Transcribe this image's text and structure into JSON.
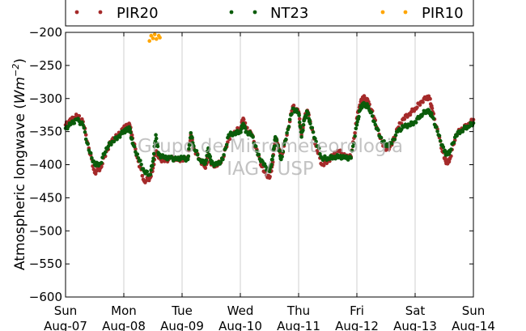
{
  "chart_data": {
    "type": "scatter",
    "ylabel": "Atmospheric longwave (Wm⁻²)",
    "ylabel_parts": {
      "main": "Atmospheric longwave (",
      "unit": "Wm",
      "exponent": "−2",
      "close": ")"
    },
    "ylim": [
      -600,
      -200
    ],
    "yticks": [
      -200,
      -250,
      -300,
      -350,
      -400,
      -450,
      -500,
      -550,
      -600
    ],
    "xlim": [
      0,
      7
    ],
    "x_unit": "days since Sun Aug-07",
    "xticks": [
      {
        "day": "Sun",
        "date": "Aug-07"
      },
      {
        "day": "Mon",
        "date": "Aug-08"
      },
      {
        "day": "Tue",
        "date": "Aug-09"
      },
      {
        "day": "Wed",
        "date": "Aug-10"
      },
      {
        "day": "Thu",
        "date": "Aug-11"
      },
      {
        "day": "Fri",
        "date": "Aug-12"
      },
      {
        "day": "Sat",
        "date": "Aug-13"
      },
      {
        "day": "Sun",
        "date": "Aug-14"
      }
    ],
    "grid": "vertical",
    "legend_position": "top (above plot)",
    "watermark": {
      "line1": "Grupo de Micrometeorologia",
      "line2": "IAG / USP"
    },
    "series": [
      {
        "name": "PIR20",
        "color": "#a52a2a",
        "points": [
          [
            0,
            -340
          ],
          [
            0.1,
            -332
          ],
          [
            0.2,
            -326
          ],
          [
            0.3,
            -335
          ],
          [
            0.4,
            -375
          ],
          [
            0.5,
            -412
          ],
          [
            0.6,
            -405
          ],
          [
            0.7,
            -380
          ],
          [
            0.8,
            -362
          ],
          [
            0.9,
            -356
          ],
          [
            1,
            -345
          ],
          [
            1.05,
            -342
          ],
          [
            1.1,
            -340
          ],
          [
            1.15,
            -360
          ],
          [
            1.25,
            -395
          ],
          [
            1.35,
            -425
          ],
          [
            1.45,
            -420
          ],
          [
            1.5,
            -405
          ],
          [
            1.55,
            -380
          ],
          [
            1.6,
            -390
          ],
          [
            1.7,
            -395
          ],
          [
            1.8,
            -390
          ],
          [
            1.9,
            -392
          ],
          [
            2,
            -392
          ],
          [
            2.1,
            -390
          ],
          [
            2.15,
            -355
          ],
          [
            2.2,
            -375
          ],
          [
            2.3,
            -392
          ],
          [
            2.4,
            -405
          ],
          [
            2.45,
            -385
          ],
          [
            2.5,
            -400
          ],
          [
            2.6,
            -402
          ],
          [
            2.7,
            -390
          ],
          [
            2.8,
            -360
          ],
          [
            2.9,
            -350
          ],
          [
            3,
            -345
          ],
          [
            3.05,
            -330
          ],
          [
            3.1,
            -345
          ],
          [
            3.2,
            -355
          ],
          [
            3.3,
            -385
          ],
          [
            3.4,
            -410
          ],
          [
            3.5,
            -420
          ],
          [
            3.55,
            -400
          ],
          [
            3.6,
            -360
          ],
          [
            3.65,
            -370
          ],
          [
            3.7,
            -390
          ],
          [
            3.8,
            -355
          ],
          [
            3.9,
            -312
          ],
          [
            4,
            -320
          ],
          [
            4.05,
            -355
          ],
          [
            4.1,
            -330
          ],
          [
            4.15,
            -318
          ],
          [
            4.2,
            -335
          ],
          [
            4.3,
            -372
          ],
          [
            4.4,
            -400
          ],
          [
            4.5,
            -395
          ],
          [
            4.6,
            -385
          ],
          [
            4.7,
            -380
          ],
          [
            4.8,
            -388
          ],
          [
            4.9,
            -388
          ],
          [
            5,
            -330
          ],
          [
            5.05,
            -310
          ],
          [
            5.1,
            -298
          ],
          [
            5.15,
            -300
          ],
          [
            5.2,
            -305
          ],
          [
            5.3,
            -330
          ],
          [
            5.4,
            -360
          ],
          [
            5.5,
            -378
          ],
          [
            5.6,
            -370
          ],
          [
            5.7,
            -345
          ],
          [
            5.8,
            -330
          ],
          [
            5.9,
            -323
          ],
          [
            6,
            -315
          ],
          [
            6.1,
            -305
          ],
          [
            6.2,
            -298
          ],
          [
            6.25,
            -300
          ],
          [
            6.3,
            -320
          ],
          [
            6.4,
            -355
          ],
          [
            6.5,
            -390
          ],
          [
            6.55,
            -398
          ],
          [
            6.6,
            -390
          ],
          [
            6.7,
            -355
          ],
          [
            6.8,
            -345
          ],
          [
            6.9,
            -340
          ],
          [
            7,
            -332
          ]
        ]
      },
      {
        "name": "NT23",
        "color": "#0a5c0a",
        "points": [
          [
            0,
            -345
          ],
          [
            0.1,
            -338
          ],
          [
            0.2,
            -332
          ],
          [
            0.3,
            -340
          ],
          [
            0.4,
            -378
          ],
          [
            0.5,
            -400
          ],
          [
            0.6,
            -398
          ],
          [
            0.7,
            -375
          ],
          [
            0.8,
            -365
          ],
          [
            0.9,
            -358
          ],
          [
            1,
            -350
          ],
          [
            1.05,
            -348
          ],
          [
            1.1,
            -345
          ],
          [
            1.15,
            -368
          ],
          [
            1.25,
            -390
          ],
          [
            1.35,
            -410
          ],
          [
            1.45,
            -415
          ],
          [
            1.5,
            -395
          ],
          [
            1.55,
            -355
          ],
          [
            1.6,
            -385
          ],
          [
            1.7,
            -390
          ],
          [
            1.8,
            -390
          ],
          [
            1.9,
            -392
          ],
          [
            2,
            -390
          ],
          [
            2.1,
            -392
          ],
          [
            2.15,
            -352
          ],
          [
            2.2,
            -372
          ],
          [
            2.3,
            -392
          ],
          [
            2.4,
            -398
          ],
          [
            2.45,
            -375
          ],
          [
            2.5,
            -398
          ],
          [
            2.6,
            -400
          ],
          [
            2.7,
            -392
          ],
          [
            2.8,
            -355
          ],
          [
            2.9,
            -352
          ],
          [
            3,
            -350
          ],
          [
            3.05,
            -338
          ],
          [
            3.1,
            -350
          ],
          [
            3.2,
            -355
          ],
          [
            3.3,
            -385
          ],
          [
            3.4,
            -400
          ],
          [
            3.5,
            -410
          ],
          [
            3.55,
            -392
          ],
          [
            3.6,
            -358
          ],
          [
            3.65,
            -372
          ],
          [
            3.7,
            -392
          ],
          [
            3.8,
            -352
          ],
          [
            3.9,
            -315
          ],
          [
            4,
            -322
          ],
          [
            4.05,
            -358
          ],
          [
            4.1,
            -332
          ],
          [
            4.15,
            -320
          ],
          [
            4.2,
            -338
          ],
          [
            4.3,
            -365
          ],
          [
            4.4,
            -390
          ],
          [
            4.5,
            -390
          ],
          [
            4.6,
            -388
          ],
          [
            4.7,
            -388
          ],
          [
            4.8,
            -390
          ],
          [
            4.9,
            -390
          ],
          [
            5,
            -340
          ],
          [
            5.05,
            -318
          ],
          [
            5.1,
            -308
          ],
          [
            5.15,
            -310
          ],
          [
            5.2,
            -312
          ],
          [
            5.3,
            -335
          ],
          [
            5.4,
            -358
          ],
          [
            5.5,
            -372
          ],
          [
            5.6,
            -368
          ],
          [
            5.7,
            -350
          ],
          [
            5.8,
            -343
          ],
          [
            5.9,
            -340
          ],
          [
            6,
            -335
          ],
          [
            6.1,
            -325
          ],
          [
            6.2,
            -318
          ],
          [
            6.25,
            -320
          ],
          [
            6.3,
            -328
          ],
          [
            6.4,
            -355
          ],
          [
            6.5,
            -380
          ],
          [
            6.55,
            -385
          ],
          [
            6.6,
            -380
          ],
          [
            6.7,
            -355
          ],
          [
            6.8,
            -348
          ],
          [
            6.9,
            -342
          ],
          [
            7,
            -337
          ]
        ]
      },
      {
        "name": "PIR10",
        "color": "#ffa500",
        "points": [
          [
            1.44,
            -213
          ],
          [
            1.47,
            -205
          ],
          [
            1.5,
            -209
          ],
          [
            1.53,
            -203
          ],
          [
            1.56,
            -210
          ],
          [
            1.6,
            -205
          ],
          [
            1.62,
            -208
          ]
        ]
      }
    ]
  }
}
